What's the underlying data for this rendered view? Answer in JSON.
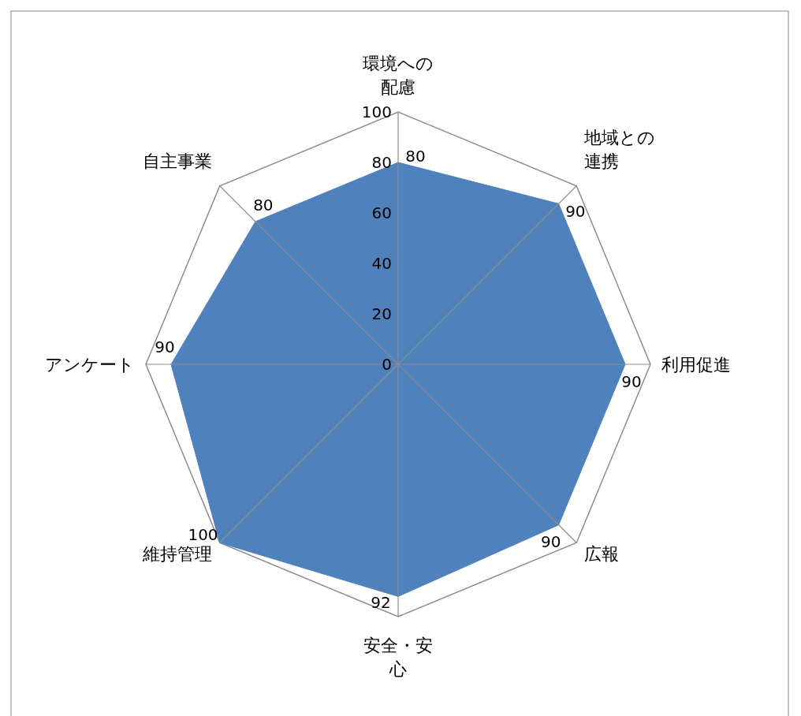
{
  "chart_data": {
    "type": "radar",
    "categories": [
      "環境への配慮",
      "地域との連携",
      "利用促進",
      "広報",
      "安全・安心",
      "維持管理",
      "アンケート",
      "自主事業"
    ],
    "series": [
      {
        "color": "#4f81bd",
        "values": [
          80,
          90,
          90,
          90,
          92,
          100,
          90,
          80
        ]
      }
    ],
    "ylim": [
      0,
      100
    ],
    "yticks": [
      0,
      20,
      40,
      60,
      80,
      100
    ],
    "grid": true,
    "data_labels": true
  }
}
